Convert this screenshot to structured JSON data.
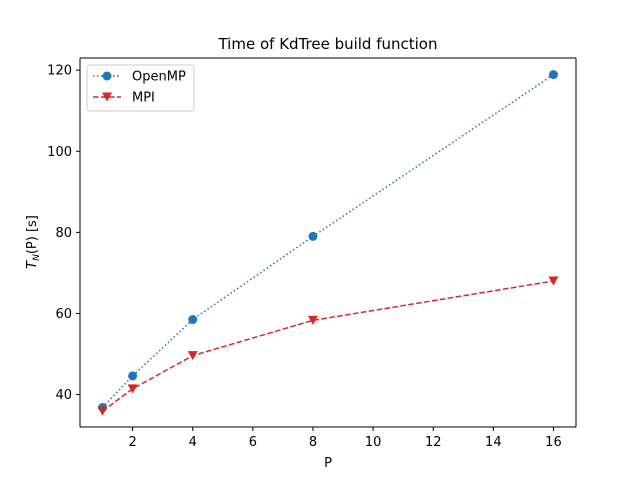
{
  "chart_data": {
    "type": "line",
    "title": "Time of KdTree build function",
    "xlabel": "P",
    "ylabel": {
      "main": "T",
      "sub": "N",
      "rest": "(P) [s]"
    },
    "xlim": [
      0.25,
      16.75
    ],
    "ylim": [
      32,
      123
    ],
    "xticks": [
      2,
      4,
      6,
      8,
      10,
      12,
      14,
      16
    ],
    "yticks": [
      40,
      60,
      80,
      100,
      120
    ],
    "legend_position": "upper-left",
    "grid": false,
    "series": [
      {
        "name": "OpenMP",
        "x": [
          1,
          2,
          4,
          8,
          16
        ],
        "values": [
          36.8,
          44.6,
          58.5,
          79.0,
          118.9
        ],
        "color": "#1f77b4",
        "linestyle": "dotted",
        "marker": "circle"
      },
      {
        "name": "MPI",
        "x": [
          1,
          2,
          4,
          8,
          16
        ],
        "values": [
          35.9,
          41.4,
          49.6,
          58.3,
          68.0
        ],
        "color": "#d62728",
        "linestyle": "dashed",
        "marker": "triangle-down"
      }
    ]
  }
}
